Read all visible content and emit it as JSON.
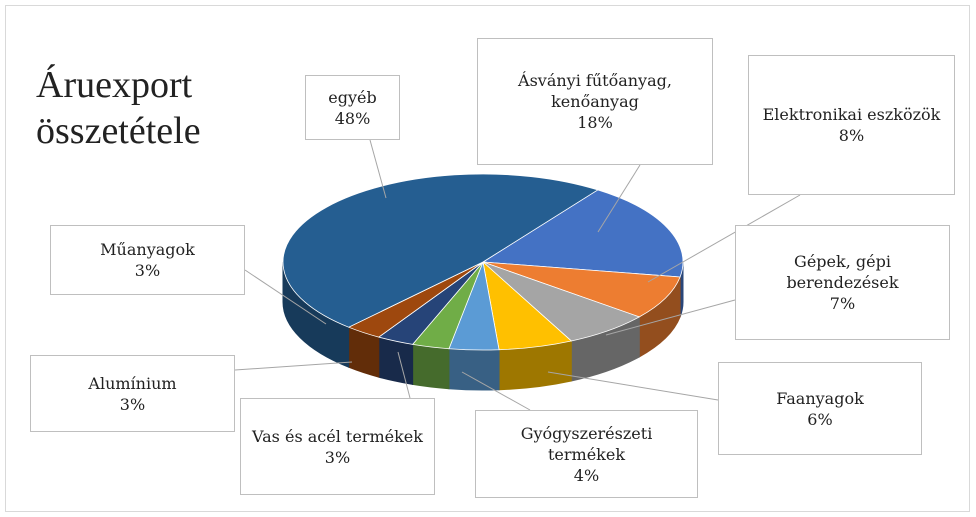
{
  "chart_data": {
    "type": "pie3d",
    "title": "Áruexport összetétele",
    "categories": [
      "Ásványi fűtőanyag, kenőanyag",
      "Elektronikai eszközök",
      "Gépek, gépi berendezések",
      "Faanyagok",
      "Gyógyszerészeti termékek",
      "Vas és acél termékek",
      "Alumínium",
      "Műanyagok",
      "egyéb"
    ],
    "values": [
      18,
      8,
      7,
      6,
      4,
      3,
      3,
      3,
      48
    ],
    "value_labels": [
      "18%",
      "8%",
      "7%",
      "6%",
      "4%",
      "3%",
      "3%",
      "3%",
      "48%"
    ],
    "colors": [
      "#4472c4",
      "#ed7d31",
      "#a5a5a5",
      "#ffc000",
      "#5b9bd5",
      "#70ad47",
      "#264478",
      "#9e480e",
      "#255e91"
    ]
  }
}
